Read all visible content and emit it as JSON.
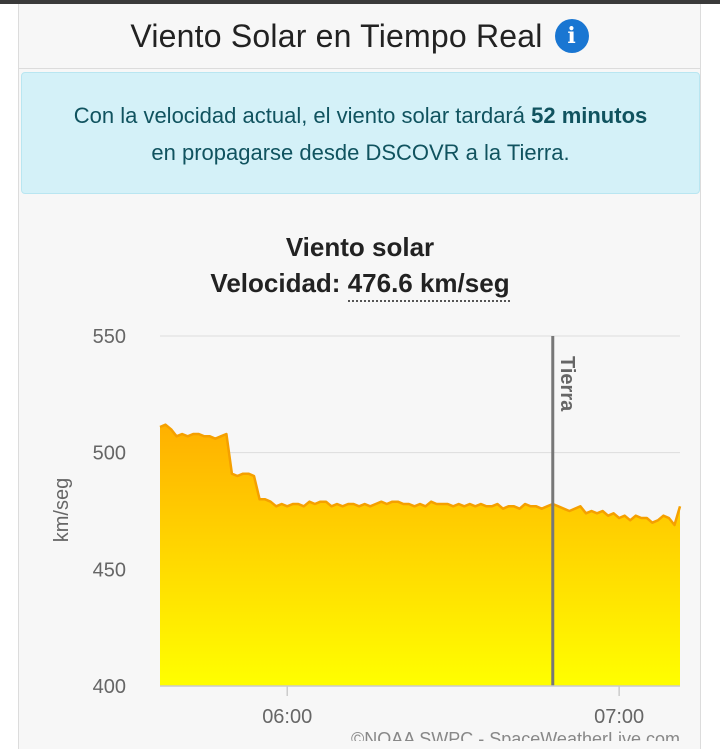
{
  "header": {
    "title": "Viento Solar en Tiempo Real",
    "info_icon": "info-icon"
  },
  "alert": {
    "text_before": "Con la velocidad actual, el viento solar tardará ",
    "highlight": "52 minutos",
    "text_after": "en propagarse desde DSCOVR a la Tierra."
  },
  "chart": {
    "title": "Viento solar",
    "subtitle_label": "Velocidad: ",
    "subtitle_value": "476.6 km/seg",
    "credit": "©NOAA SWPC - SpaceWeatherLive.com"
  },
  "colors": {
    "accent": "#1976d2",
    "alert_bg": "#d4f1f8",
    "area_top": "#ffb000",
    "area_bottom": "#ffff00",
    "line": "#f5a000"
  },
  "chart_data": {
    "type": "area",
    "title": "",
    "xlabel": "",
    "ylabel": "km/seg",
    "ylim": [
      400,
      550
    ],
    "yticks": [
      400,
      450,
      500,
      550
    ],
    "xtick_labels": [
      "06:00",
      "07:00"
    ],
    "xtick_minutes": [
      360,
      420
    ],
    "xrange_minutes": [
      337,
      431
    ],
    "marker": {
      "label": "Tierra",
      "x_minutes": 408
    },
    "grid": true,
    "series": [
      {
        "values": [
          [
            337,
            511
          ],
          [
            338,
            512
          ],
          [
            339,
            510
          ],
          [
            340,
            507
          ],
          [
            341,
            508
          ],
          [
            342,
            507
          ],
          [
            343,
            508
          ],
          [
            344,
            508
          ],
          [
            345,
            507
          ],
          [
            346,
            507
          ],
          [
            347,
            506
          ],
          [
            348,
            507
          ],
          [
            349,
            508
          ],
          [
            350,
            491
          ],
          [
            351,
            490
          ],
          [
            352,
            491
          ],
          [
            353,
            491
          ],
          [
            354,
            490
          ],
          [
            355,
            480
          ],
          [
            356,
            480
          ],
          [
            357,
            479
          ],
          [
            358,
            477
          ],
          [
            359,
            478
          ],
          [
            360,
            477
          ],
          [
            361,
            478
          ],
          [
            362,
            478
          ],
          [
            363,
            477
          ],
          [
            364,
            479
          ],
          [
            365,
            478
          ],
          [
            366,
            479
          ],
          [
            367,
            479
          ],
          [
            368,
            477
          ],
          [
            369,
            478
          ],
          [
            370,
            477
          ],
          [
            371,
            478
          ],
          [
            372,
            478
          ],
          [
            373,
            477
          ],
          [
            374,
            478
          ],
          [
            375,
            477
          ],
          [
            376,
            478
          ],
          [
            377,
            479
          ],
          [
            378,
            478
          ],
          [
            379,
            479
          ],
          [
            380,
            479
          ],
          [
            381,
            478
          ],
          [
            382,
            478
          ],
          [
            383,
            477
          ],
          [
            384,
            478
          ],
          [
            385,
            477
          ],
          [
            386,
            479
          ],
          [
            387,
            478
          ],
          [
            388,
            478
          ],
          [
            389,
            478
          ],
          [
            390,
            477
          ],
          [
            391,
            478
          ],
          [
            392,
            477
          ],
          [
            393,
            478
          ],
          [
            394,
            477
          ],
          [
            395,
            478
          ],
          [
            396,
            477
          ],
          [
            397,
            477
          ],
          [
            398,
            478
          ],
          [
            399,
            476
          ],
          [
            400,
            477
          ],
          [
            401,
            477
          ],
          [
            402,
            476
          ],
          [
            403,
            478
          ],
          [
            404,
            477
          ],
          [
            405,
            477
          ],
          [
            406,
            476
          ],
          [
            407,
            477
          ],
          [
            408,
            478
          ],
          [
            409,
            477
          ],
          [
            410,
            476
          ],
          [
            411,
            475
          ],
          [
            412,
            476
          ],
          [
            413,
            477
          ],
          [
            414,
            474
          ],
          [
            415,
            475
          ],
          [
            416,
            474
          ],
          [
            417,
            475
          ],
          [
            418,
            473
          ],
          [
            419,
            474
          ],
          [
            420,
            472
          ],
          [
            421,
            473
          ],
          [
            422,
            471
          ],
          [
            423,
            473
          ],
          [
            424,
            472
          ],
          [
            425,
            472
          ],
          [
            426,
            470
          ],
          [
            427,
            471
          ],
          [
            428,
            473
          ],
          [
            429,
            472
          ],
          [
            430,
            469
          ],
          [
            431,
            477
          ]
        ]
      }
    ]
  }
}
